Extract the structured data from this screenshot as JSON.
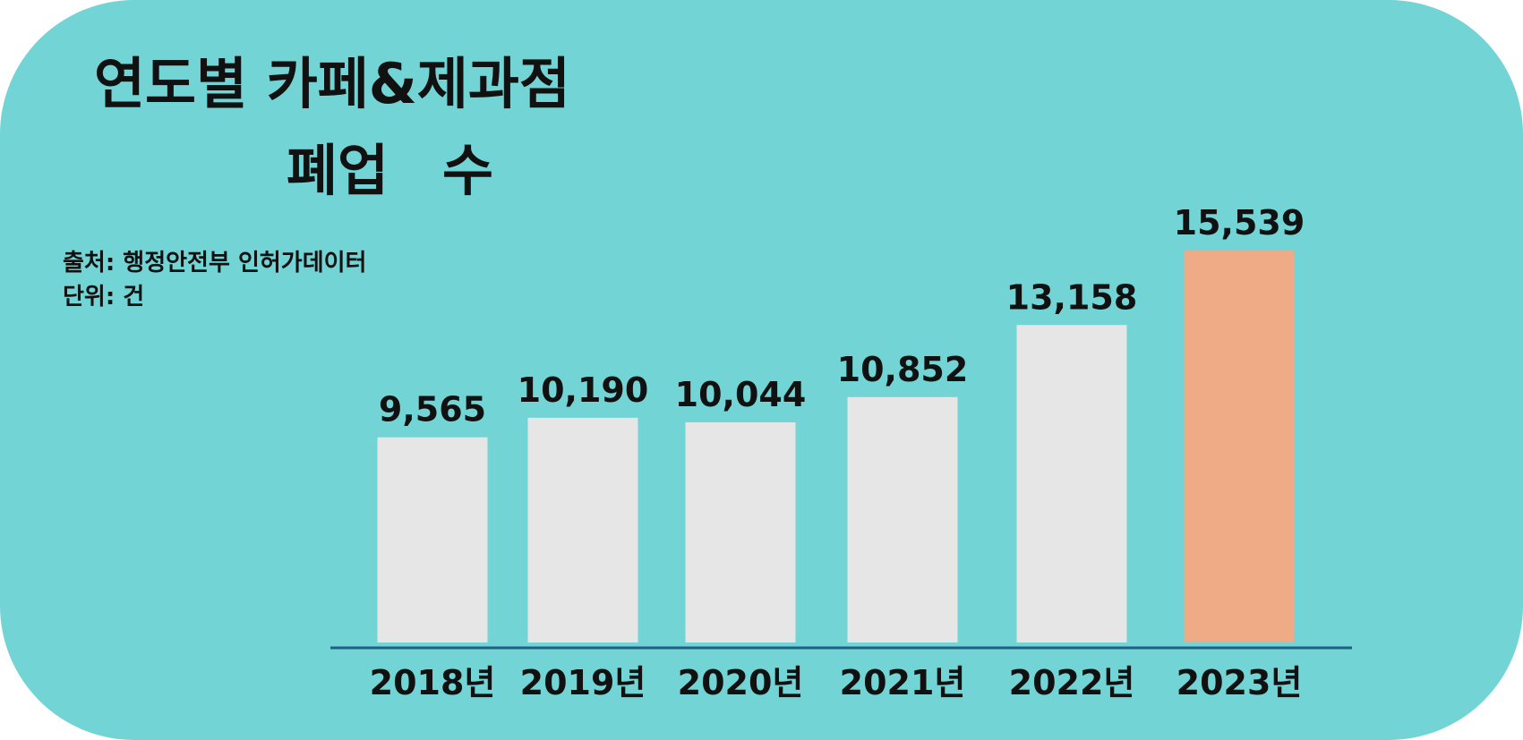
{
  "chart_data": {
    "type": "bar",
    "title": {
      "line1": "연도별 카페&제과점",
      "highlight": "폐업",
      "rest": "수"
    },
    "source": "출처: 행정안전부 인허가데이터",
    "unit": "단위: 건",
    "categories": [
      "2018년",
      "2019년",
      "2020년",
      "2021년",
      "2022년",
      "2023년"
    ],
    "values": [
      9565,
      10190,
      10044,
      10852,
      13158,
      15539
    ],
    "value_labels": [
      "9,565",
      "10,190",
      "10,044",
      "10,852",
      "13,158",
      "15,539"
    ],
    "colors": [
      "#e6e6e6",
      "#e6e6e6",
      "#e6e6e6",
      "#e6e6e6",
      "#e6e6e6",
      "#efaa86"
    ],
    "value_label_colors": [
      "#111111",
      "#111111",
      "#111111",
      "#111111",
      "#111111",
      "#f07f3c"
    ],
    "highlight_color": "#f07f3c",
    "ylim": [
      3000,
      16000
    ]
  }
}
